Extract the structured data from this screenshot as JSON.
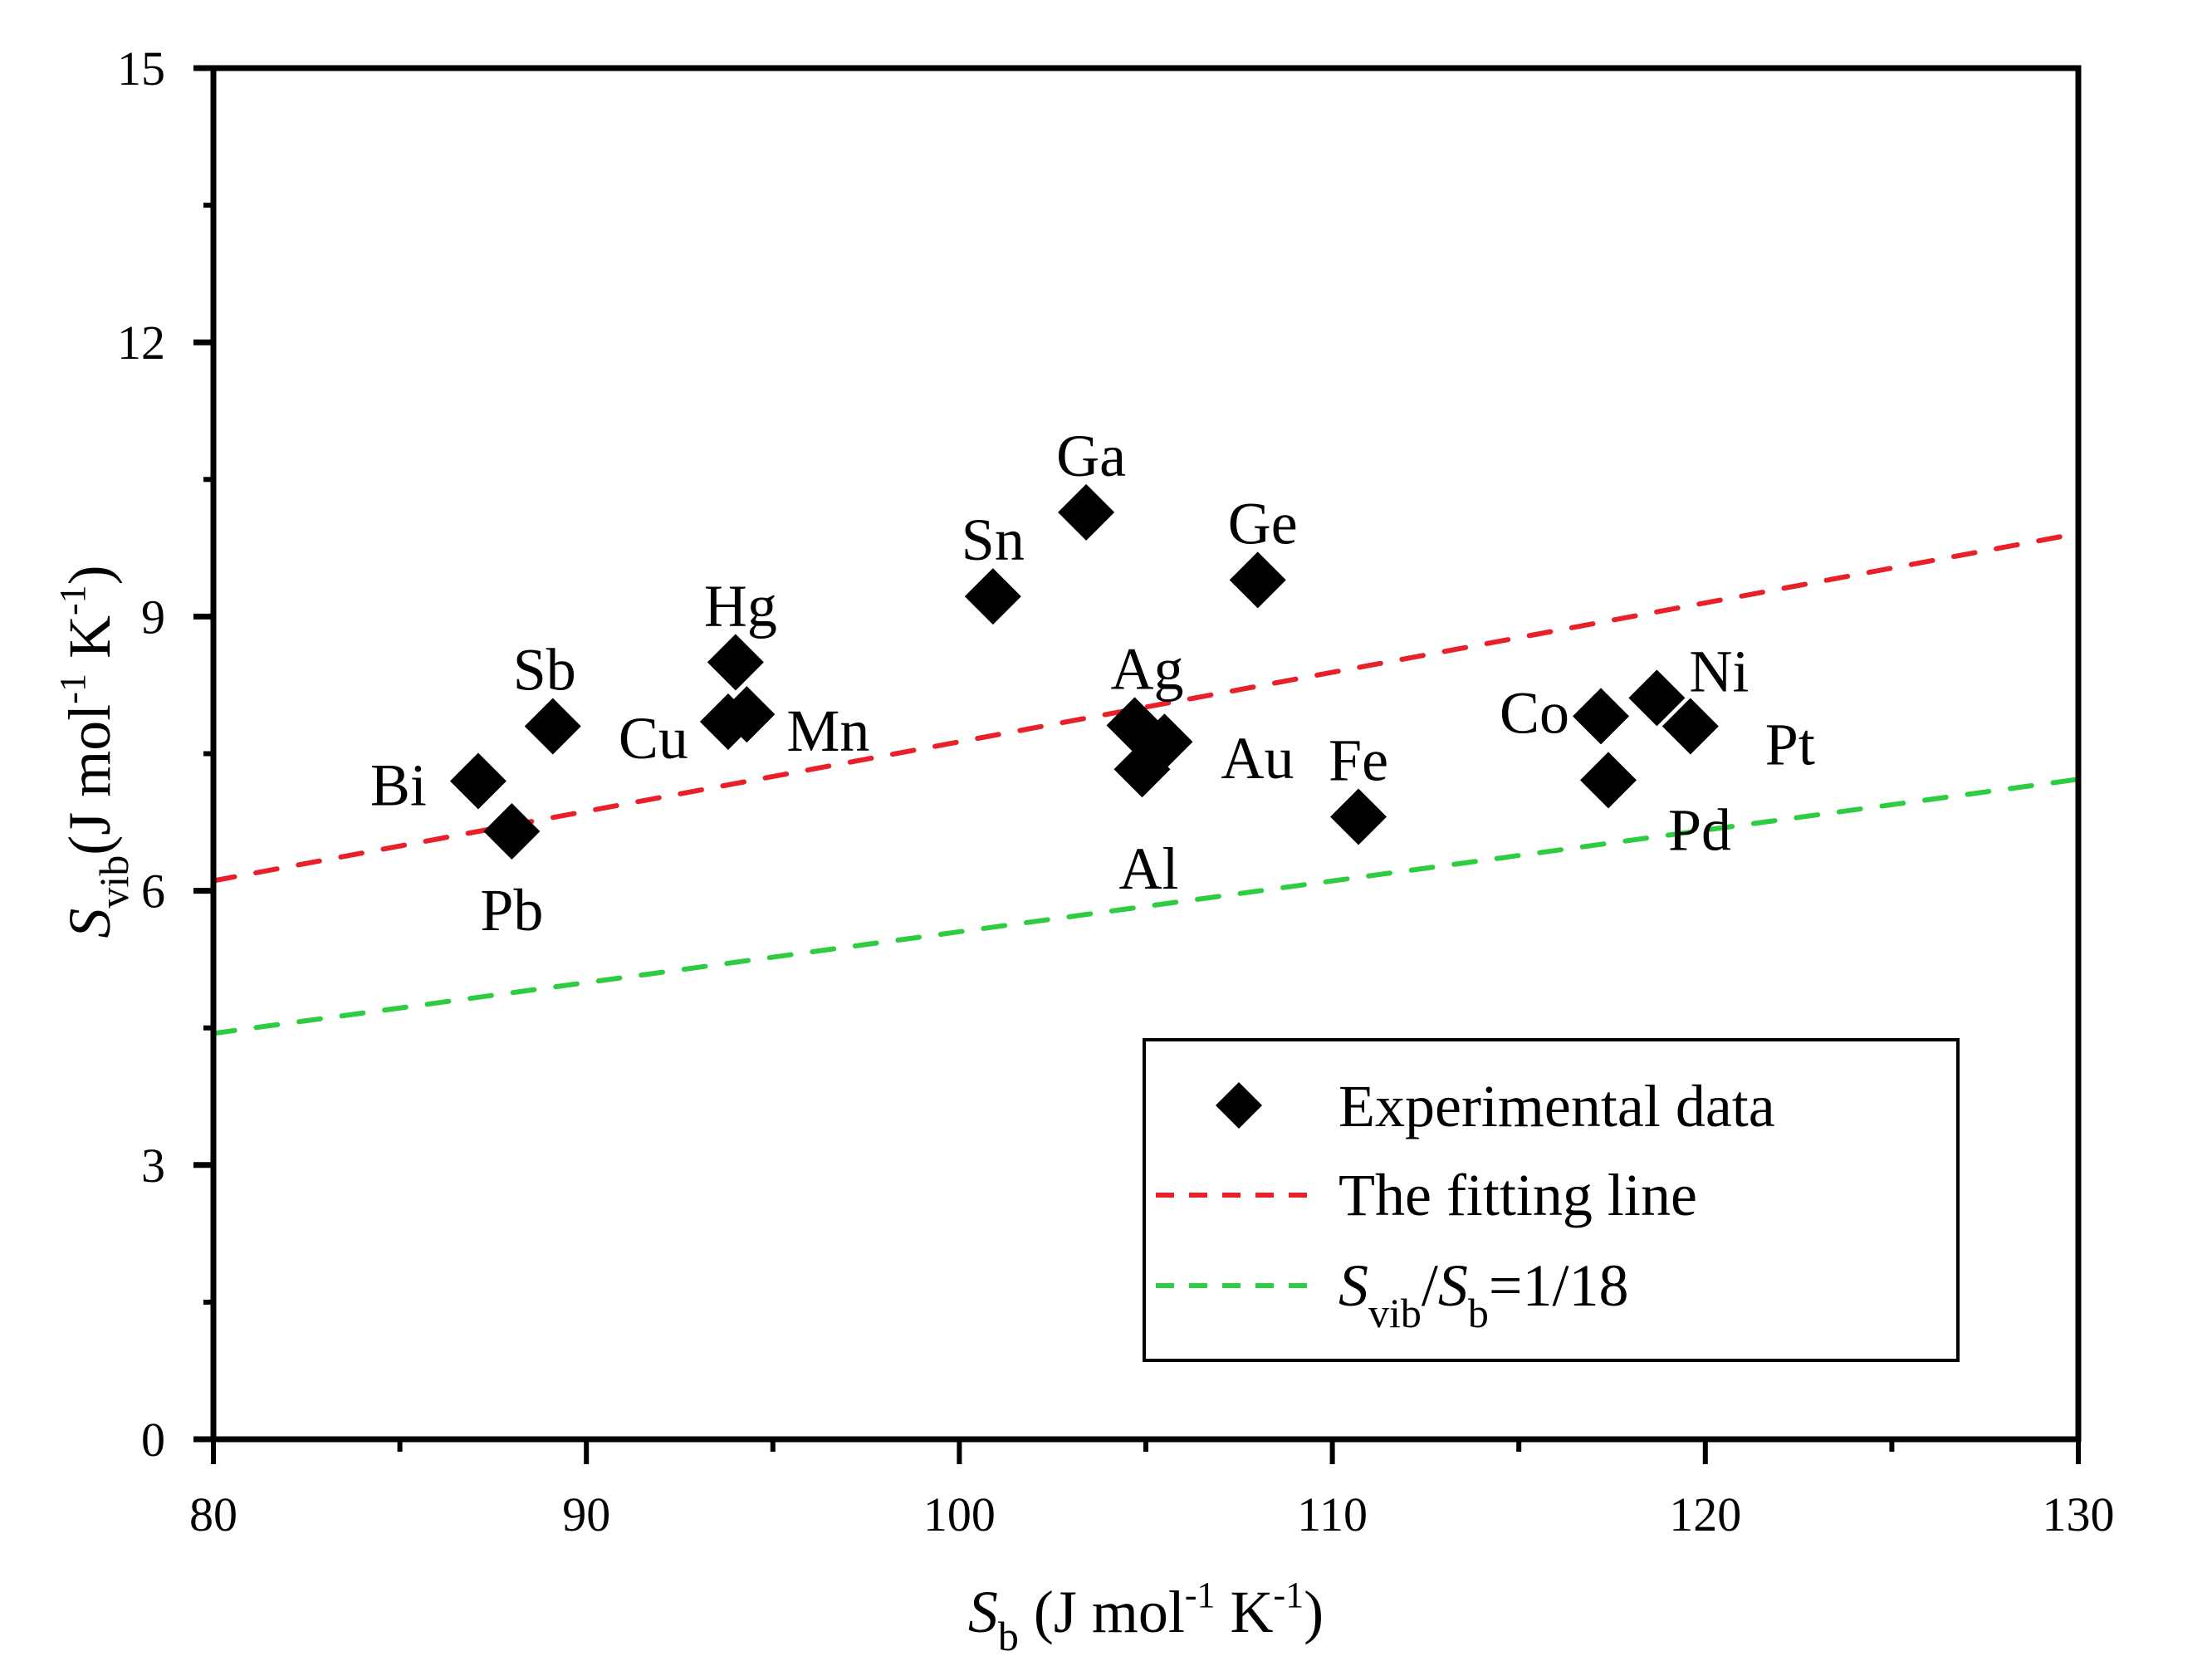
{
  "chart_data": {
    "type": "scatter",
    "title": "",
    "xlabel": {
      "symbol": "S",
      "subscript": "b",
      "unit_prefix": " (J mol",
      "exp1": "-1",
      "unit_mid": " K",
      "exp2": "-1",
      "unit_suffix": ")"
    },
    "ylabel": {
      "symbol": "S",
      "subscript": "vib",
      "unit_prefix": "(J mol",
      "exp1": "-1",
      "unit_mid": " K",
      "exp2": "-1",
      "unit_suffix": ")"
    },
    "xlim": [
      80,
      130
    ],
    "ylim": [
      0,
      15
    ],
    "xticks": [
      80,
      90,
      100,
      110,
      120,
      130
    ],
    "xtick_labels": [
      "80",
      "90",
      "100",
      "110",
      "120",
      "130"
    ],
    "xminor": [
      85,
      95,
      105,
      115,
      125
    ],
    "yticks": [
      0,
      3,
      6,
      9,
      12,
      15
    ],
    "ytick_labels": [
      "0",
      "3",
      "6",
      "9",
      "12",
      "15"
    ],
    "yminor": [
      1.5,
      4.5,
      7.5,
      10.5,
      13.5
    ],
    "grid": false,
    "legend_position": "bottom-right",
    "series": [
      {
        "name": "Experimental data",
        "kind": "scatter",
        "marker": "diamond",
        "color": "#000000",
        "points": [
          {
            "label": "Bi",
            "x": 87.1,
            "y": 7.2
          },
          {
            "label": "Pb",
            "x": 88.0,
            "y": 6.65
          },
          {
            "label": "Sb",
            "x": 89.1,
            "y": 7.8
          },
          {
            "label": "Cu",
            "x": 93.8,
            "y": 7.85
          },
          {
            "label": "Mn",
            "x": 94.3,
            "y": 7.93
          },
          {
            "label": "Hg",
            "x": 94.0,
            "y": 8.5
          },
          {
            "label": "Sn",
            "x": 100.9,
            "y": 9.22
          },
          {
            "label": "Ga",
            "x": 103.4,
            "y": 10.14
          },
          {
            "label": "Ge",
            "x": 108.0,
            "y": 9.4
          },
          {
            "label": "Ag",
            "x": 104.7,
            "y": 7.81
          },
          {
            "label": "Au",
            "x": 105.5,
            "y": 7.63
          },
          {
            "label": "Al",
            "x": 104.9,
            "y": 7.33
          },
          {
            "label": "Fe",
            "x": 110.7,
            "y": 6.81
          },
          {
            "label": "Co",
            "x": 117.2,
            "y": 7.91
          },
          {
            "label": "Ni",
            "x": 118.7,
            "y": 8.11
          },
          {
            "label": "Pt",
            "x": 119.6,
            "y": 7.8
          },
          {
            "label": "Pd",
            "x": 117.4,
            "y": 7.21
          }
        ]
      },
      {
        "name": "The fitting line",
        "kind": "line",
        "style": "dashed",
        "color": "#e8202a",
        "x": [
          80,
          130
        ],
        "y": [
          6.11,
          9.91
        ]
      },
      {
        "name": "Svib/Sb=1/18",
        "kind": "line",
        "style": "dashed",
        "color": "#2ecc40",
        "x": [
          80,
          130
        ],
        "y": [
          4.44,
          7.22
        ]
      }
    ],
    "legend": {
      "entries": [
        {
          "text": "Experimental data"
        },
        {
          "text": "The fitting line"
        },
        {
          "symbol1": "S",
          "sub1": "vib",
          "slash": "/",
          "symbol2": "S",
          "sub2": "b",
          "rest": "=1/18"
        }
      ]
    }
  }
}
